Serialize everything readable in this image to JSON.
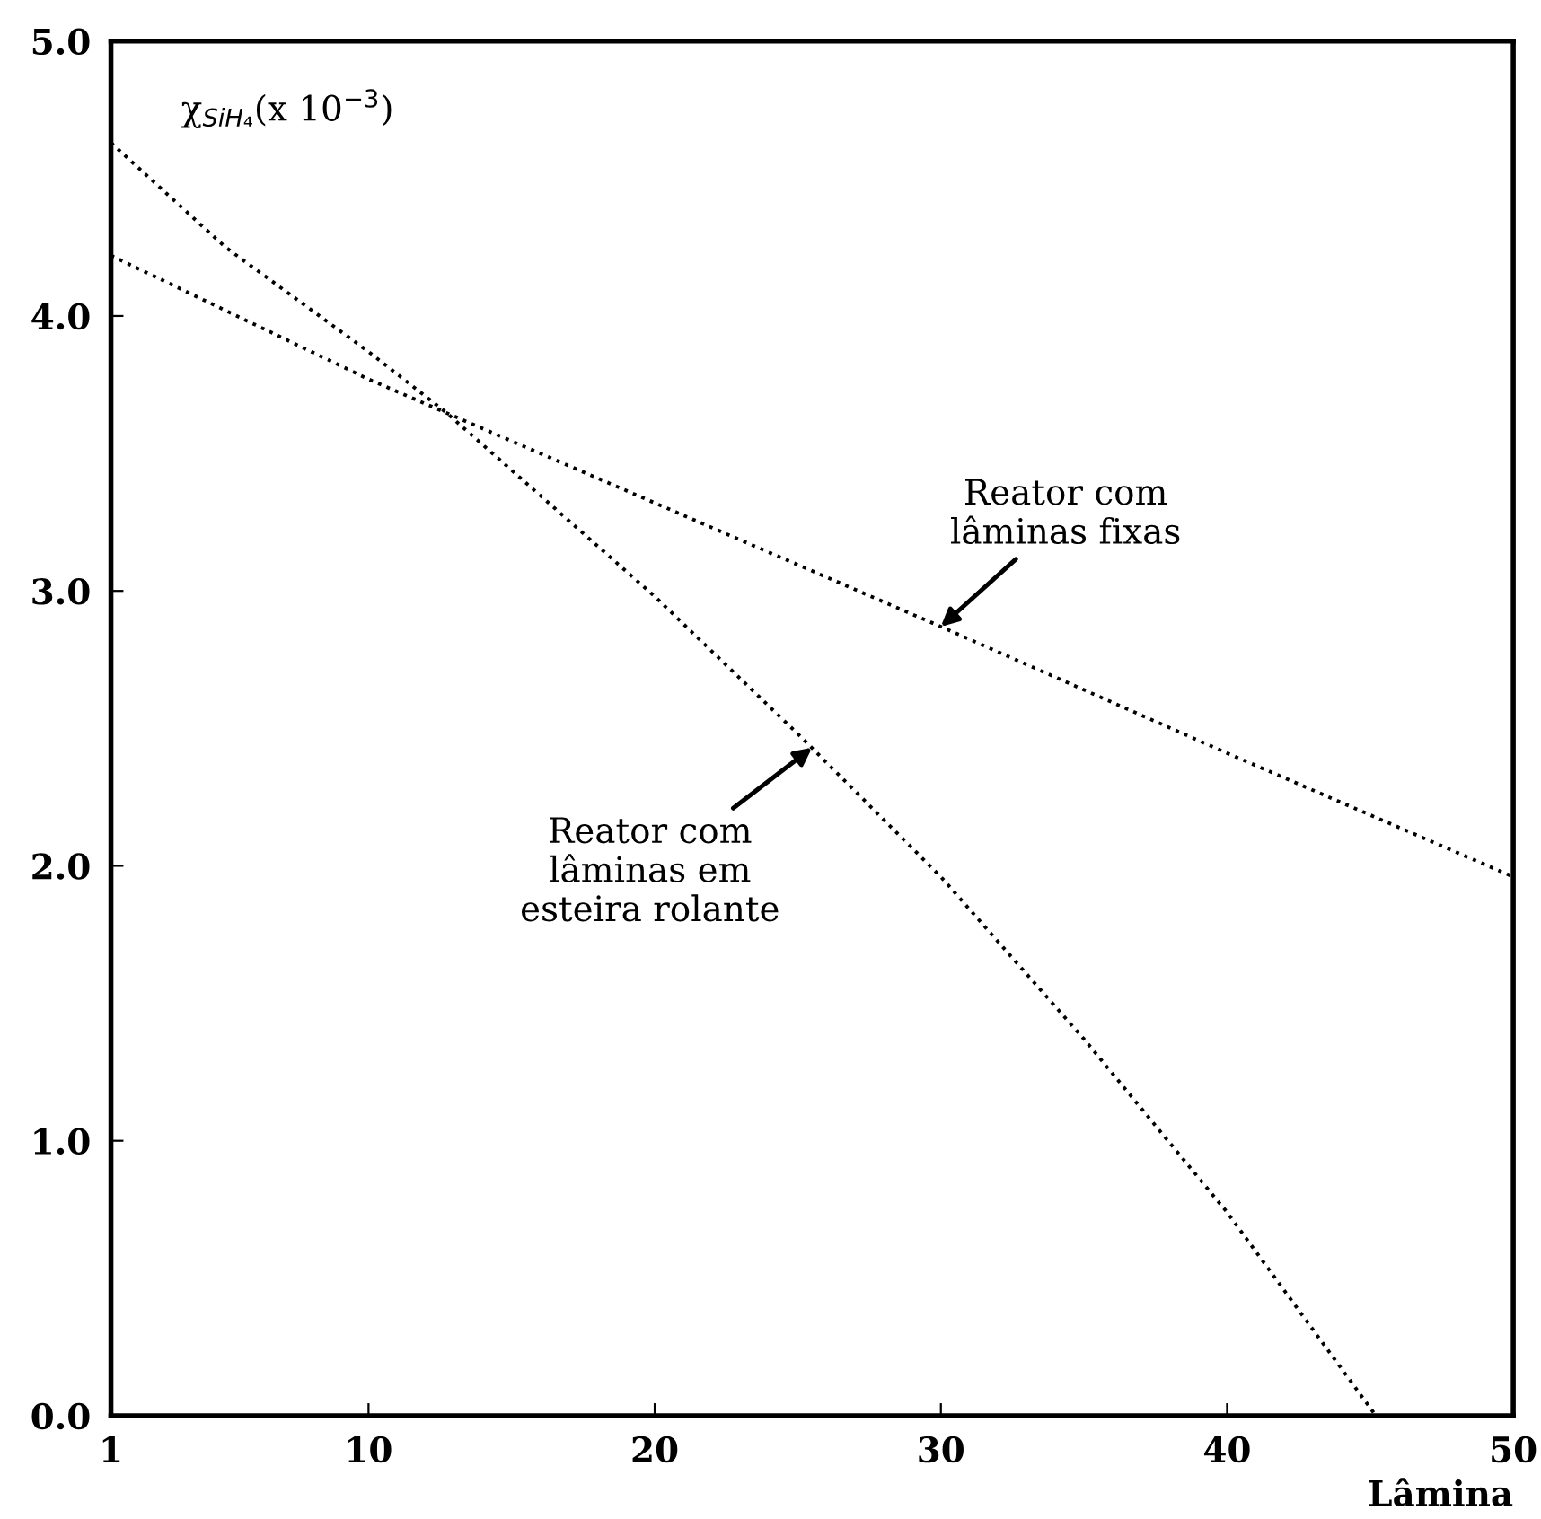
{
  "chart_data": {
    "type": "line",
    "xlabel": "Lâmina",
    "ylabel": "χ$_{SiH₄}$(x 10$^{−3}$)",
    "xlim": [
      1,
      50
    ],
    "ylim": [
      0,
      5
    ],
    "xticks": [
      1,
      10,
      20,
      30,
      40,
      50
    ],
    "yticks": [
      {
        "value": 0,
        "label": "0.0"
      },
      {
        "value": 1,
        "label": "1.0"
      },
      {
        "value": 2,
        "label": "2.0"
      },
      {
        "value": 3,
        "label": "3.0"
      },
      {
        "value": 4,
        "label": "4.0"
      },
      {
        "value": 5,
        "label": "5.0"
      }
    ],
    "grid": false,
    "legend": false,
    "marker": "none",
    "line_style": "dotted",
    "series": [
      {
        "color": "#000000",
        "x": [
          1,
          10,
          20,
          30,
          40,
          50
        ],
        "values": [
          4.22,
          3.77,
          3.32,
          2.87,
          2.41,
          1.96
        ]
      },
      {
        "color": "#000000",
        "x": [
          1,
          5,
          10,
          12.7,
          20,
          25,
          30,
          35,
          40,
          45.2
        ],
        "values": [
          4.63,
          4.25,
          3.87,
          3.65,
          2.98,
          2.48,
          1.96,
          1.37,
          0.74,
          0
        ]
      }
    ],
    "annotations": [
      {
        "text": "Reator com\nlâminas fixas",
        "x": 30,
        "y": 2.87
      },
      {
        "text": "Reator com\nlâminas em\nesteira rolante",
        "x": 25.5,
        "y": 2.43
      }
    ]
  }
}
